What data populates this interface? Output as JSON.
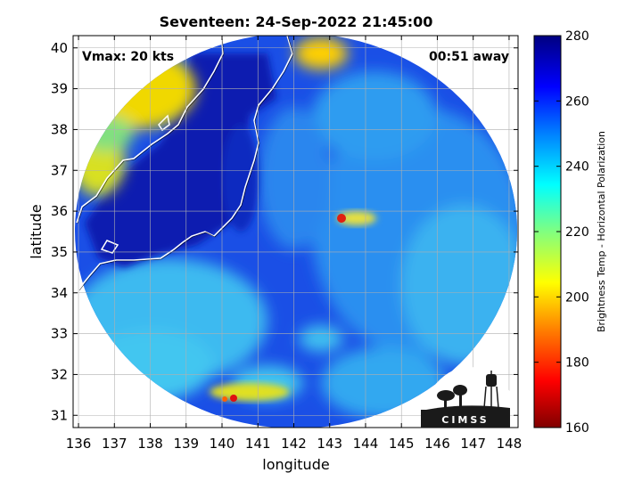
{
  "title": "Seventeen: 24-Sep-2022 21:45:00",
  "vmax_label": "Vmax: 20 kts",
  "time_away_label": "00:51 away",
  "x_axis": {
    "label": "longitude",
    "ticks": [
      "136",
      "137",
      "138",
      "139",
      "140",
      "141",
      "142",
      "143",
      "144",
      "145",
      "146",
      "147",
      "148"
    ]
  },
  "y_axis": {
    "label": "latitude",
    "ticks": [
      "31",
      "32",
      "33",
      "34",
      "35",
      "36",
      "37",
      "38",
      "39",
      "40"
    ]
  },
  "colorbar": {
    "label": "Brightness Temp - Horizontal Polarization",
    "ticks": [
      "160",
      "180",
      "200",
      "220",
      "240",
      "260",
      "280"
    ],
    "colormap": [
      "#800000",
      "#ff0000",
      "#ff8000",
      "#ffff00",
      "#80ff80",
      "#00ffff",
      "#0080ff",
      "#0000ff",
      "#000080"
    ]
  },
  "logo": {
    "text": "CIMSS",
    "icon": "cimss-logo-icon"
  },
  "colors": {
    "deep_blue": "#0a1fb0",
    "mid_blue": "#1f5ef0",
    "cyan": "#3ec8f0",
    "yellow": "#e8e000",
    "red": "#e01010"
  }
}
